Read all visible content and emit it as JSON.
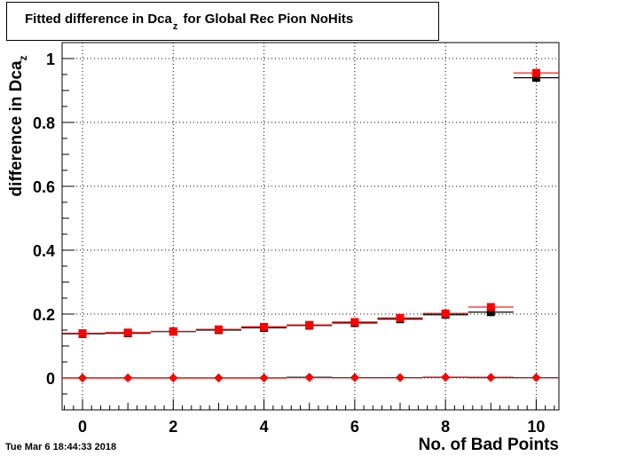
{
  "title": {
    "main": "Fitted difference in Dca",
    "sub": "z",
    "rest": " for Global Rec Pion NoHits"
  },
  "ylabel": {
    "main": "difference in Dca",
    "sub": "z"
  },
  "xlabel": "No. of Bad Points",
  "timestamp": "Tue Mar  6 18:44:33 2018",
  "chart_data": {
    "type": "scatter",
    "xlim": [
      -0.45,
      10.5
    ],
    "ylim": [
      -0.1,
      1.05
    ],
    "xticks": [
      0,
      2,
      4,
      6,
      8,
      10
    ],
    "yticks": [
      0,
      0.2,
      0.4,
      0.6,
      0.8,
      1
    ],
    "grid": true,
    "legend": "none",
    "series": [
      {
        "color": "#000000",
        "marker": "square",
        "x": [
          0,
          1,
          2,
          3,
          4,
          5,
          6,
          7,
          8,
          9,
          10
        ],
        "y": [
          0.138,
          0.14,
          0.145,
          0.15,
          0.157,
          0.164,
          0.172,
          0.184,
          0.198,
          0.206,
          0.94
        ]
      },
      {
        "color": "#ff0000",
        "marker": "square",
        "x": [
          0,
          1,
          2,
          3,
          4,
          5,
          6,
          7,
          8,
          9,
          10
        ],
        "y": [
          0.14,
          0.142,
          0.146,
          0.152,
          0.16,
          0.166,
          0.175,
          0.188,
          0.202,
          0.222,
          0.955
        ]
      },
      {
        "color": "#000000",
        "marker": "diamond",
        "x": [
          0,
          1,
          2,
          3,
          4,
          5,
          6,
          7,
          8,
          9,
          10
        ],
        "y": [
          0.0,
          0.0,
          0.0,
          0.0,
          0.0,
          0.002,
          0.001,
          0.001,
          0.002,
          0.001,
          0.001
        ]
      },
      {
        "color": "#ff0000",
        "marker": "diamond",
        "x": [
          0,
          1,
          2,
          3,
          4,
          5,
          6,
          7,
          8,
          9,
          10
        ],
        "y": [
          0.0,
          0.0,
          0.0,
          0.0,
          0.0,
          0.001,
          0.001,
          0.001,
          0.002,
          0.002,
          0.001
        ]
      }
    ]
  }
}
